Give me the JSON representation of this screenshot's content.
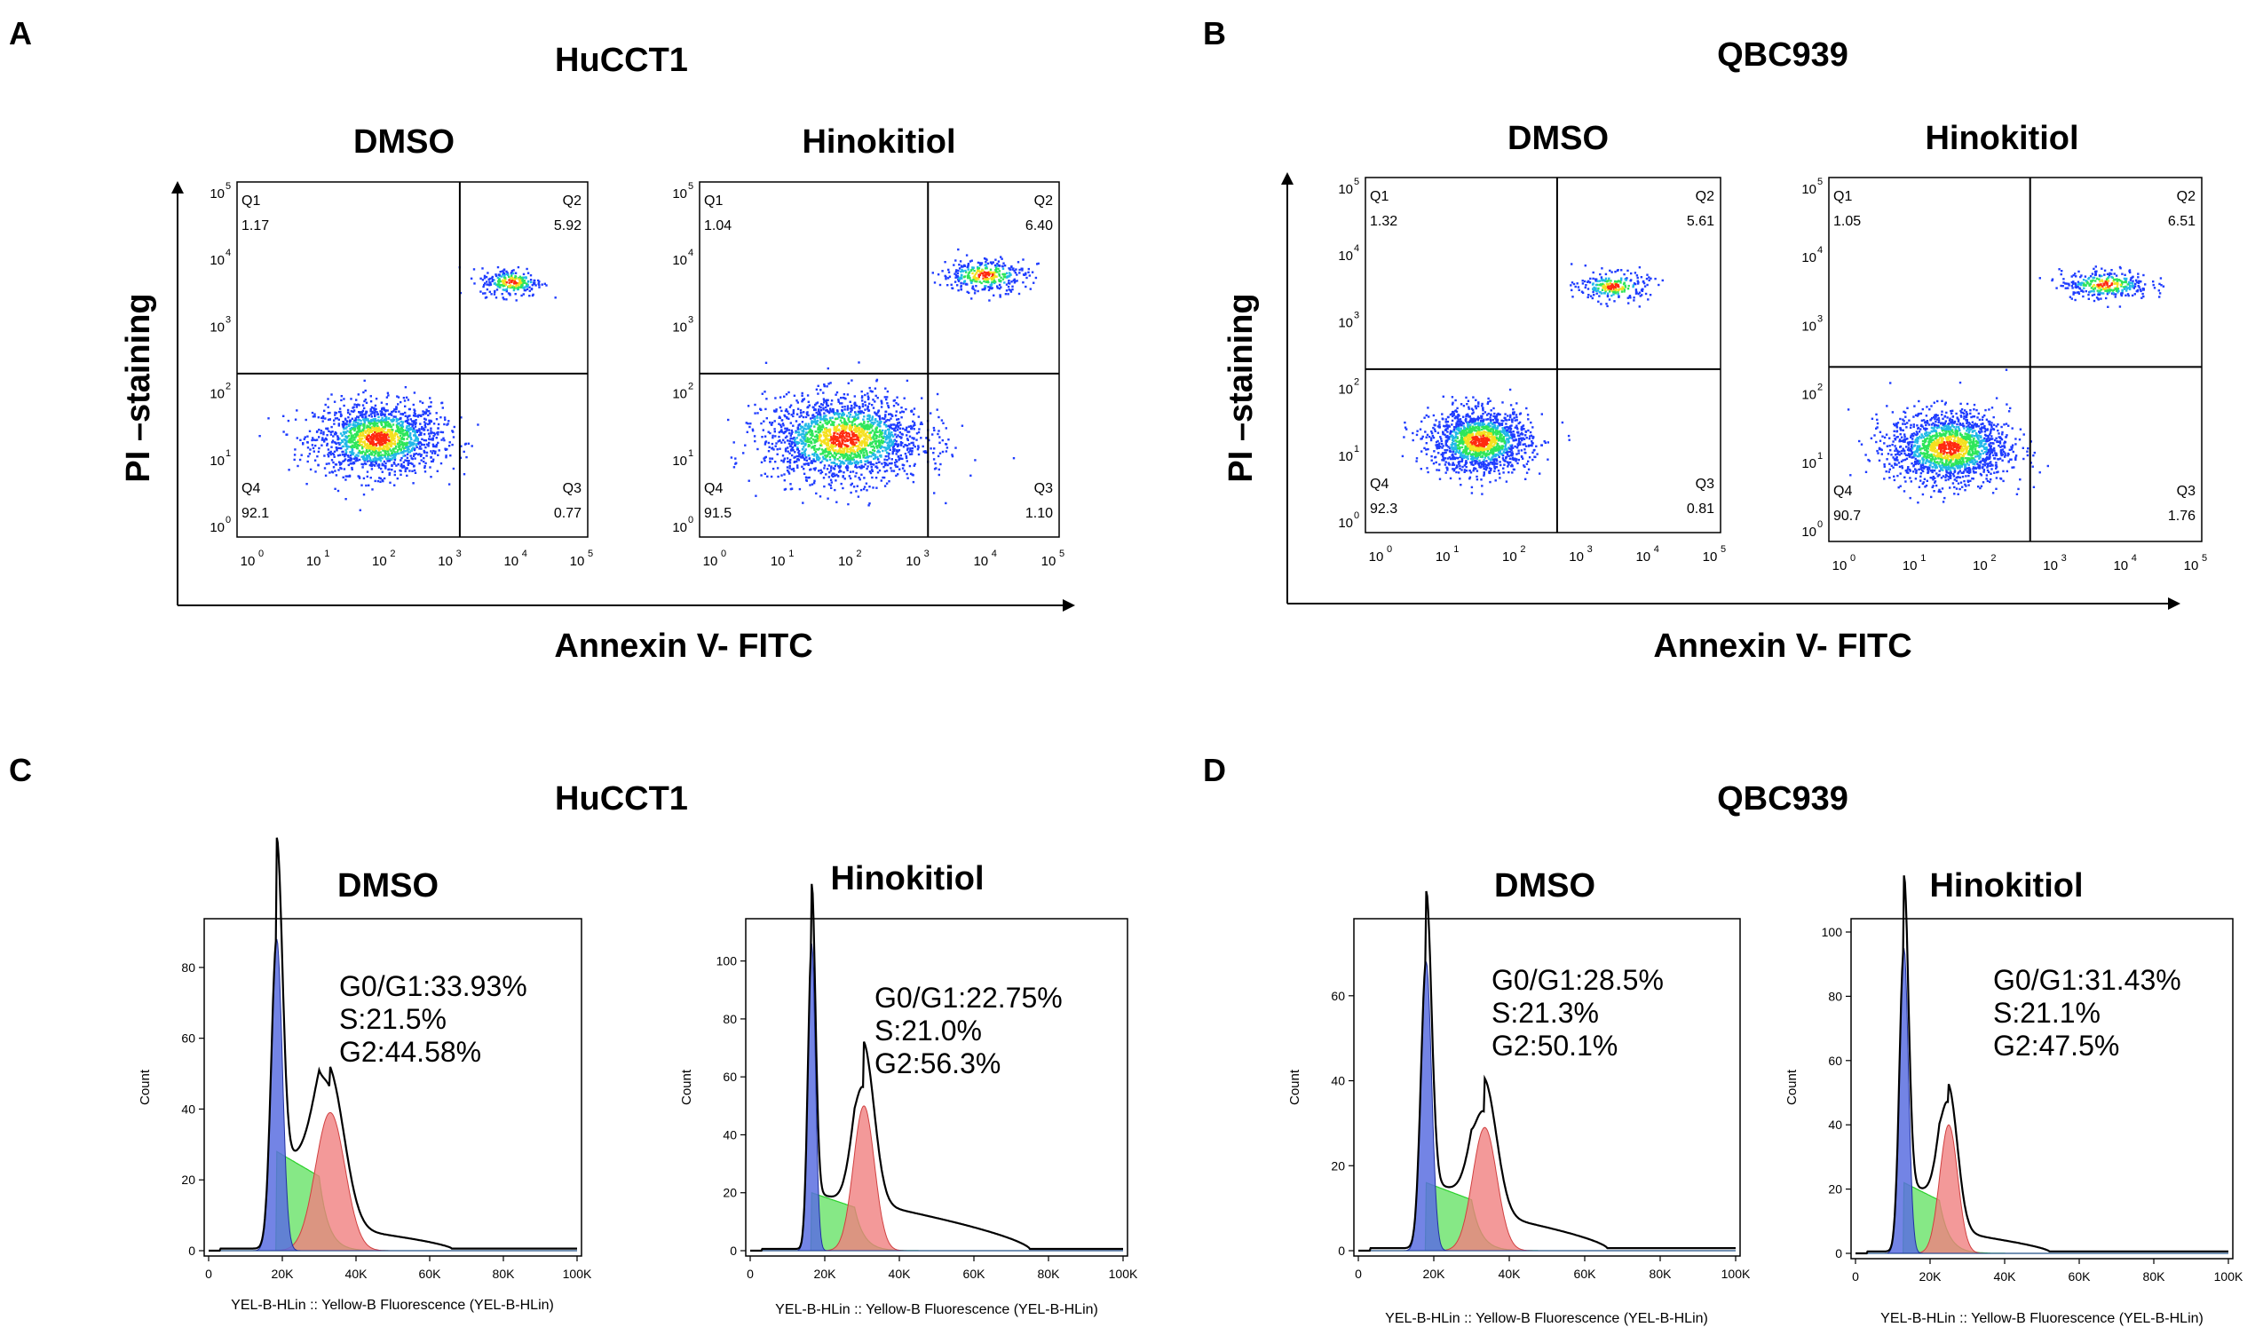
{
  "figure": {
    "panel_labels": [
      "A",
      "B",
      "C",
      "D"
    ],
    "apoptosis_axis": {
      "y_label": "PI –staining",
      "x_label": "Annexin V- FITC",
      "tick_labels": [
        "10",
        "10",
        "10",
        "10",
        "10",
        "10"
      ],
      "tick_exponents": [
        "0",
        "1",
        "2",
        "3",
        "4",
        "5"
      ]
    },
    "cell_cycle_axis": {
      "x_title": "YEL-B-HLin :: Yellow-B Fluorescence (YEL-B-HLin)",
      "x_ticks": [
        "0",
        "20K",
        "40K",
        "60K",
        "80K",
        "100K"
      ],
      "y_title": "Count"
    }
  },
  "colors": {
    "density_low": "#1f3cff",
    "density_mid": "#2ee65a",
    "density_high": "#ff2a10",
    "g1_fill": "#5a6fe0",
    "s_fill": "#5ee05e",
    "g2_fill": "#f08080",
    "outline": "#000000"
  },
  "chart_data": [
    {
      "panel": "A",
      "type": "scatter",
      "title": "HuCCT1",
      "xlabel": "Annexin V- FITC",
      "ylabel": "PI –staining",
      "x_scale": "log",
      "y_scale": "log",
      "xlim": [
        1,
        100000
      ],
      "ylim": [
        1,
        100000
      ],
      "plots": [
        {
          "subtitle": "DMSO",
          "gate_x": 1500,
          "gate_y": 200,
          "quadrants": {
            "Q1": "1.17",
            "Q2": "5.92",
            "Q3": "0.77",
            "Q4": "92.1"
          },
          "clusters": [
            {
              "x": 100,
              "y": 25,
              "n": 1600,
              "spread": [
                0.45,
                0.25
              ]
            },
            {
              "x": 8000,
              "y": 4000,
              "n": 250,
              "spread": [
                0.22,
                0.1
              ]
            }
          ]
        },
        {
          "subtitle": "Hinokitiol",
          "gate_x": 1500,
          "gate_y": 200,
          "quadrants": {
            "Q1": "1.04",
            "Q2": "6.40",
            "Q3": "1.10",
            "Q4": "91.5"
          },
          "clusters": [
            {
              "x": 100,
              "y": 25,
              "n": 1900,
              "spread": [
                0.55,
                0.3
              ]
            },
            {
              "x": 9000,
              "y": 5000,
              "n": 350,
              "spread": [
                0.3,
                0.12
              ]
            }
          ]
        }
      ]
    },
    {
      "panel": "B",
      "type": "scatter",
      "title": "QBC939",
      "xlabel": "Annexin V- FITC",
      "ylabel": "PI –staining",
      "x_scale": "log",
      "y_scale": "log",
      "xlim": [
        1,
        100000
      ],
      "ylim": [
        1,
        100000
      ],
      "plots": [
        {
          "subtitle": "DMSO",
          "gate_x": 500,
          "gate_y": 200,
          "quadrants": {
            "Q1": "1.32",
            "Q2": "5.61",
            "Q3": "0.81",
            "Q4": "92.3"
          },
          "clusters": [
            {
              "x": 40,
              "y": 20,
              "n": 1500,
              "spread": [
                0.35,
                0.22
              ]
            },
            {
              "x": 3000,
              "y": 3000,
              "n": 240,
              "spread": [
                0.25,
                0.1
              ]
            }
          ]
        },
        {
          "subtitle": "Hinokitiol",
          "gate_x": 500,
          "gate_y": 250,
          "quadrants": {
            "Q1": "1.05",
            "Q2": "6.51",
            "Q3": "1.76",
            "Q4": "90.7"
          },
          "clusters": [
            {
              "x": 40,
              "y": 20,
              "n": 1700,
              "spread": [
                0.4,
                0.25
              ]
            },
            {
              "x": 5000,
              "y": 3500,
              "n": 330,
              "spread": [
                0.3,
                0.1
              ]
            }
          ]
        }
      ]
    },
    {
      "panel": "C",
      "type": "area",
      "title": "HuCCT1",
      "xlabel": "YEL-B-HLin :: Yellow-B Fluorescence (YEL-B-HLin)",
      "ylabel": "Count",
      "xlim": [
        0,
        100000
      ],
      "plots": [
        {
          "subtitle": "DMSO",
          "ylim": [
            0,
            90
          ],
          "y_ticks": [
            0,
            20,
            40,
            60,
            80
          ],
          "phases": {
            "g0g1": "G0/G1:33.93%",
            "s": "S:21.5%",
            "g2": "G2:44.58%"
          },
          "g1": {
            "mu": 18500,
            "sigma": 1500,
            "height": 88
          },
          "g2": {
            "mu": 33000,
            "sigma": 4000,
            "height": 39
          },
          "s": {
            "from": 20000,
            "to": 30000,
            "level": 28
          },
          "tail": {
            "to": 66000,
            "level": 6
          }
        },
        {
          "subtitle": "Hinokitiol",
          "ylim": [
            0,
            110
          ],
          "y_ticks": [
            0,
            20,
            40,
            60,
            80,
            100
          ],
          "phases": {
            "g0g1": "G0/G1:22.75%",
            "s": "S:21.0%",
            "g2": "G2:56.3%"
          },
          "g1": {
            "mu": 16500,
            "sigma": 1000,
            "height": 106
          },
          "g2": {
            "mu": 30500,
            "sigma": 2800,
            "height": 50
          },
          "s": {
            "from": 18000,
            "to": 28000,
            "level": 20
          },
          "tail": {
            "to": 75000,
            "level": 16
          }
        }
      ]
    },
    {
      "panel": "D",
      "type": "area",
      "title": "QBC939",
      "xlabel": "YEL-B-HLin :: Yellow-B Fluorescence (YEL-B-HLin)",
      "ylabel": "Count",
      "xlim": [
        0,
        100000
      ],
      "plots": [
        {
          "subtitle": "DMSO",
          "ylim": [
            0,
            75
          ],
          "y_ticks": [
            0,
            20,
            40,
            60
          ],
          "phases": {
            "g0g1": "G0/G1:28.5%",
            "s": "S:21.3%",
            "g2": "G2:50.1%"
          },
          "g1": {
            "mu": 18000,
            "sigma": 1400,
            "height": 68
          },
          "g2": {
            "mu": 33500,
            "sigma": 3200,
            "height": 29
          },
          "s": {
            "from": 19500,
            "to": 30000,
            "level": 16
          },
          "tail": {
            "to": 66000,
            "level": 8
          }
        },
        {
          "subtitle": "Hinokitiol",
          "ylim": [
            0,
            100
          ],
          "y_ticks": [
            0,
            20,
            40,
            60,
            80,
            100
          ],
          "phases": {
            "g0g1": "G0/G1:31.43%",
            "s": "S:21.1%",
            "g2": "G2:47.5%"
          },
          "g1": {
            "mu": 13000,
            "sigma": 1200,
            "height": 95
          },
          "g2": {
            "mu": 25000,
            "sigma": 2400,
            "height": 40
          },
          "s": {
            "from": 14500,
            "to": 22500,
            "level": 22
          },
          "tail": {
            "to": 52000,
            "level": 6
          }
        }
      ]
    }
  ]
}
